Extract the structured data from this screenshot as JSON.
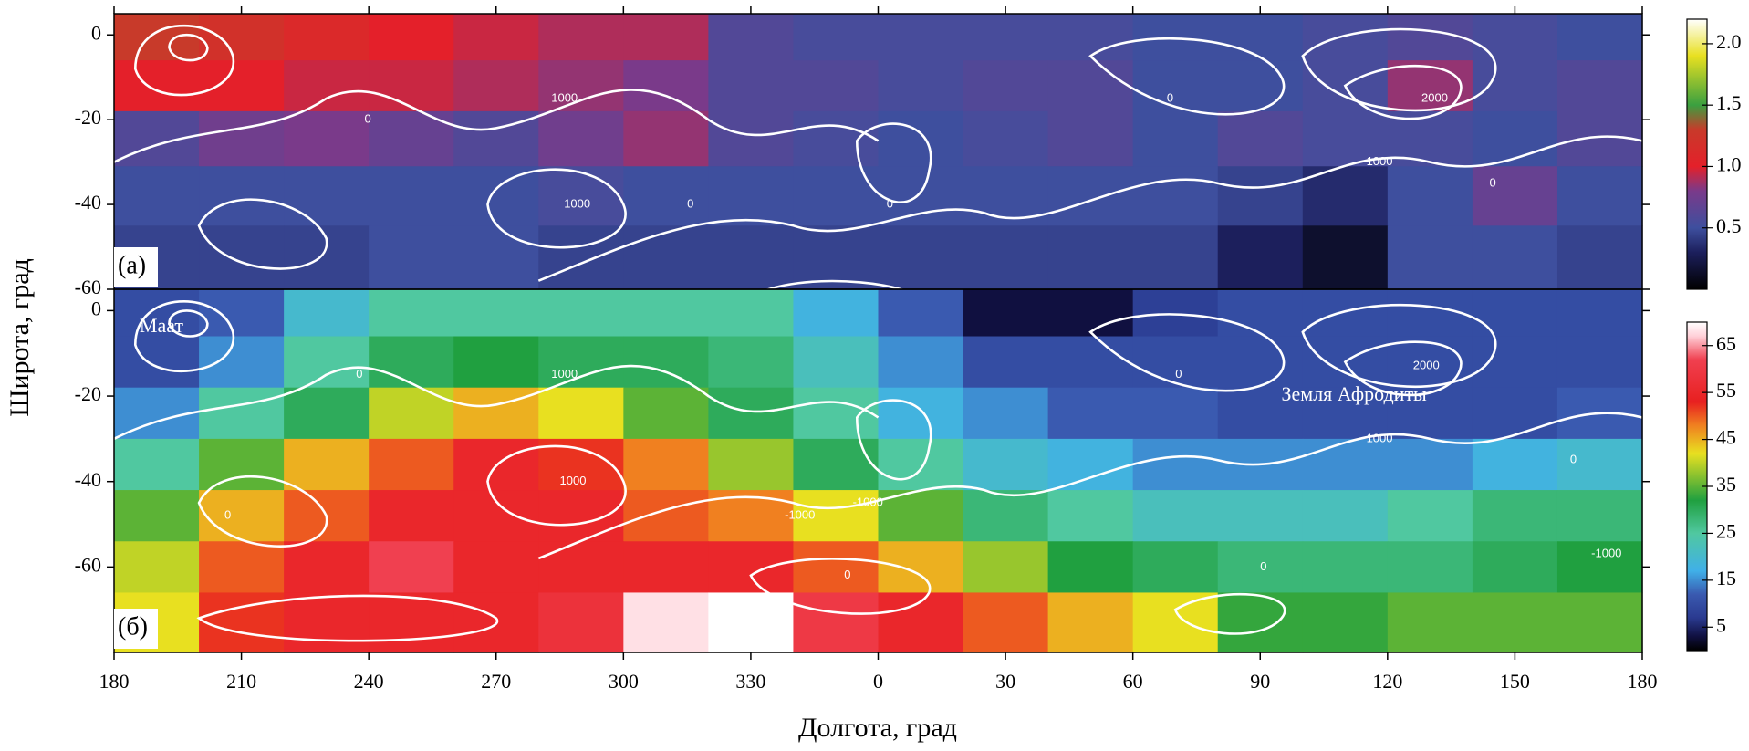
{
  "chart_data": [
    {
      "type": "heatmap",
      "panel_label": "(а)",
      "ylabel": "Широта, град",
      "x": [
        190,
        210,
        230,
        250,
        270,
        290,
        310,
        330,
        350,
        370,
        390,
        410,
        430,
        450,
        470,
        490,
        510,
        530
      ],
      "y": [
        0,
        -12,
        -24,
        -38,
        -52
      ],
      "values": [
        [
          1.3,
          1.2,
          1.1,
          1.0,
          0.95,
          0.9,
          0.9,
          0.6,
          0.55,
          0.55,
          0.55,
          0.55,
          0.5,
          0.5,
          0.55,
          0.6,
          0.55,
          0.5
        ],
        [
          1.0,
          1.0,
          0.95,
          0.95,
          0.9,
          0.85,
          0.8,
          0.6,
          0.6,
          0.55,
          0.6,
          0.6,
          0.5,
          0.5,
          0.55,
          0.85,
          0.55,
          0.6
        ],
        [
          0.6,
          0.75,
          0.8,
          0.7,
          0.6,
          0.75,
          0.85,
          0.6,
          0.55,
          0.5,
          0.55,
          0.6,
          0.5,
          0.6,
          0.55,
          0.55,
          0.5,
          0.6
        ],
        [
          0.5,
          0.5,
          0.5,
          0.5,
          0.5,
          0.55,
          0.5,
          0.5,
          0.5,
          0.5,
          0.5,
          0.5,
          0.5,
          0.45,
          0.35,
          0.5,
          0.7,
          0.5
        ],
        [
          0.45,
          0.45,
          0.45,
          0.5,
          0.5,
          0.45,
          0.45,
          0.45,
          0.45,
          0.45,
          0.45,
          0.45,
          0.45,
          0.3,
          0.15,
          0.5,
          0.5,
          0.45
        ]
      ],
      "xlim": [
        180,
        540
      ],
      "ylim": [
        -60,
        5
      ],
      "yticks": [
        0,
        -20,
        -40,
        -60
      ],
      "clim": [
        0,
        2.2
      ],
      "cticks": [
        0.5,
        {
          "value": 1.0,
          "label": "1.0"
        },
        1.5,
        {
          "value": 2.0,
          "label": "2.0"
        }
      ],
      "colorscale": [
        {
          "value": 0,
          "color": "#000000"
        },
        {
          "value": 0.3,
          "color": "#1c1f5c"
        },
        {
          "value": 0.5,
          "color": "#3e4f9e"
        },
        {
          "value": 0.8,
          "color": "#7a3a8a"
        },
        {
          "value": 1.0,
          "color": "#e4202a"
        },
        {
          "value": 1.3,
          "color": "#c83a2a"
        },
        {
          "value": 1.5,
          "color": "#3aa040"
        },
        {
          "value": 1.9,
          "color": "#e8e020"
        },
        {
          "value": 2.2,
          "color": "#ffffff"
        }
      ],
      "annotations": [
        {
          "text": "1000",
          "x": 283,
          "y": -15
        },
        {
          "text": "0",
          "x": 239,
          "y": -20
        },
        {
          "text": "1000",
          "x": 286,
          "y": -40
        },
        {
          "text": "0",
          "x": 315,
          "y": -40
        },
        {
          "text": "0",
          "x": 362,
          "y": -40
        },
        {
          "text": "2000",
          "x": 488,
          "y": -15
        },
        {
          "text": "1000",
          "x": 475,
          "y": -30
        },
        {
          "text": "0",
          "x": 428,
          "y": -15
        },
        {
          "text": "0",
          "x": 504,
          "y": -35
        }
      ]
    },
    {
      "type": "heatmap",
      "panel_label": "(б)",
      "xlabel": "Долгота, град",
      "x": [
        190,
        210,
        230,
        250,
        270,
        290,
        310,
        330,
        350,
        370,
        390,
        410,
        430,
        450,
        470,
        490,
        510,
        530
      ],
      "y": [
        0,
        -12,
        -24,
        -36,
        -48,
        -60,
        -72
      ],
      "values": [
        [
          10,
          12,
          20,
          25,
          25,
          25,
          25,
          25,
          18,
          12,
          3,
          3,
          8,
          10,
          10,
          10,
          10,
          10
        ],
        [
          10,
          15,
          25,
          30,
          32,
          30,
          30,
          28,
          22,
          15,
          10,
          10,
          10,
          10,
          10,
          10,
          10,
          10
        ],
        [
          15,
          25,
          30,
          40,
          45,
          42,
          35,
          30,
          25,
          18,
          15,
          12,
          12,
          10,
          10,
          10,
          10,
          12
        ],
        [
          25,
          35,
          45,
          50,
          55,
          52,
          48,
          38,
          30,
          25,
          20,
          18,
          15,
          15,
          15,
          15,
          18,
          20
        ],
        [
          35,
          45,
          50,
          55,
          55,
          55,
          50,
          48,
          42,
          35,
          28,
          25,
          22,
          22,
          22,
          25,
          28,
          28
        ],
        [
          40,
          50,
          55,
          62,
          55,
          55,
          55,
          55,
          50,
          45,
          38,
          32,
          30,
          28,
          28,
          28,
          30,
          32
        ],
        [
          42,
          52,
          55,
          55,
          55,
          58,
          68,
          70,
          60,
          55,
          50,
          45,
          42,
          33,
          33,
          35,
          35,
          35
        ]
      ],
      "xlim": [
        180,
        540
      ],
      "ylim": [
        -80,
        5
      ],
      "xticks": [
        180,
        210,
        240,
        270,
        300,
        330,
        {
          "value": 360,
          "label": "0"
        },
        {
          "value": 390,
          "label": "30"
        },
        {
          "value": 420,
          "label": "60"
        },
        {
          "value": 450,
          "label": "90"
        },
        {
          "value": 480,
          "label": "120"
        },
        {
          "value": 510,
          "label": "150"
        },
        {
          "value": 540,
          "label": "180"
        }
      ],
      "yticks": [
        0,
        -20,
        -40,
        -60
      ],
      "clim": [
        0,
        70
      ],
      "cticks": [
        5,
        15,
        25,
        35,
        45,
        55,
        65
      ],
      "colorscale": [
        {
          "value": 0,
          "color": "#000000"
        },
        {
          "value": 3,
          "color": "#101040"
        },
        {
          "value": 7,
          "color": "#2a3a90"
        },
        {
          "value": 12,
          "color": "#3a5ab0"
        },
        {
          "value": 17,
          "color": "#40b0e8"
        },
        {
          "value": 25,
          "color": "#50c8a0"
        },
        {
          "value": 32,
          "color": "#20a040"
        },
        {
          "value": 42,
          "color": "#e8e020"
        },
        {
          "value": 48,
          "color": "#f08020"
        },
        {
          "value": 53,
          "color": "#e82020"
        },
        {
          "value": 62,
          "color": "#f04050"
        },
        {
          "value": 67,
          "color": "#ffd0d8"
        },
        {
          "value": 70,
          "color": "#ffffff"
        }
      ],
      "annotations": [
        {
          "text": "Маат",
          "x": 186,
          "y": -4
        },
        {
          "text": "Земля Афродиты",
          "x": 455,
          "y": -20
        },
        {
          "text": "1000",
          "x": 283,
          "y": -15
        },
        {
          "text": "0",
          "x": 237,
          "y": -15
        },
        {
          "text": "1000",
          "x": 285,
          "y": -40
        },
        {
          "text": "0",
          "x": 206,
          "y": -48
        },
        {
          "text": "-1000",
          "x": 338,
          "y": -48
        },
        {
          "text": "-1000",
          "x": 354,
          "y": -45
        },
        {
          "text": "0",
          "x": 352,
          "y": -62
        },
        {
          "text": "0",
          "x": 450,
          "y": -60
        },
        {
          "text": "2000",
          "x": 486,
          "y": -13
        },
        {
          "text": "1000",
          "x": 475,
          "y": -30
        },
        {
          "text": "0",
          "x": 430,
          "y": -15
        },
        {
          "text": "-1000",
          "x": 528,
          "y": -57
        },
        {
          "text": "0",
          "x": 523,
          "y": -35
        }
      ]
    }
  ]
}
